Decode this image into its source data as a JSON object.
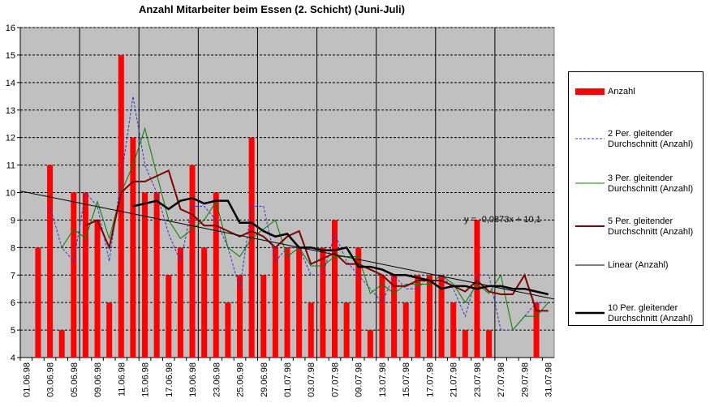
{
  "chart_data": {
    "type": "bar",
    "title": "Anzahl Mitarbeiter beim Essen (2. Schicht) (Juni-Juli)",
    "categories": [
      "01.06.98",
      null,
      "03.06.98",
      null,
      "05.06.98",
      null,
      "09.06.98",
      null,
      "11.06.98",
      null,
      "15.06.98",
      null,
      "17.06.98",
      null,
      "19.06.98",
      null,
      "23.06.98",
      null,
      "25.06.98",
      null,
      "29.06.98",
      null,
      "01.07.98",
      null,
      "03.07.98",
      null,
      "07.07.98",
      null,
      "09.07.98",
      null,
      "13.07.98",
      null,
      "15.07.98",
      null,
      "17.07.98",
      null,
      "21.07.98",
      null,
      "23.07.98",
      null,
      "27.07.98",
      null,
      "29.07.98",
      null,
      "31.07.98"
    ],
    "series": [
      {
        "name": "Anzahl",
        "color": "#ff0000",
        "style": "bar",
        "values": [
          null,
          8,
          11,
          5,
          10,
          10,
          9,
          6,
          15,
          12,
          10,
          10,
          7,
          8,
          11,
          8,
          10,
          6,
          7,
          12,
          7,
          8,
          8,
          8,
          6,
          8,
          9,
          6,
          8,
          5,
          7,
          7,
          6,
          7,
          7,
          7,
          6,
          5,
          9,
          5,
          null,
          null,
          null,
          6,
          null
        ]
      },
      {
        "name": "2 Per. gleitender Durchschnitt (Anzahl)",
        "color": "#3333cc",
        "style": "dashed",
        "values": [
          null,
          null,
          9.5,
          8,
          7.5,
          10,
          9.5,
          7.5,
          10.5,
          13.5,
          11,
          10,
          8.5,
          7.5,
          9.5,
          9.5,
          9,
          8,
          6.5,
          9.5,
          9.5,
          7.5,
          8,
          8,
          7,
          7,
          8.5,
          7.5,
          7,
          6.5,
          6,
          7,
          6.5,
          6.5,
          7,
          7,
          6.5,
          5.5,
          7,
          7,
          5,
          5,
          5.5,
          6,
          6
        ]
      },
      {
        "name": "3 Per. gleitender Durchschnitt (Anzahl)",
        "color": "#008000",
        "style": "thin",
        "values": [
          null,
          null,
          null,
          8,
          8.67,
          8.33,
          9.67,
          8.33,
          10,
          11,
          12.33,
          10.67,
          9,
          8.33,
          8.67,
          9,
          9.67,
          8,
          7.67,
          8.33,
          8.67,
          9,
          7.67,
          8,
          7.33,
          7.33,
          7.67,
          7.67,
          7.67,
          6.33,
          6.67,
          6.33,
          6.67,
          6.67,
          6.67,
          7,
          6.67,
          6,
          6.67,
          6.33,
          7,
          5,
          5.5,
          5.5,
          6
        ]
      },
      {
        "name": "5 Per. gleitender Durchschnitt (Anzahl)",
        "color": "#800000",
        "style": "medium",
        "values": [
          null,
          null,
          null,
          null,
          null,
          8.8,
          9,
          8,
          10,
          10.4,
          10.4,
          10.6,
          10.8,
          9.4,
          9.2,
          8.8,
          8.8,
          8.6,
          8.4,
          8.6,
          8.4,
          8,
          8.4,
          8.6,
          7.4,
          7.6,
          7.8,
          7.4,
          7.4,
          7.2,
          7,
          6.6,
          6.6,
          6.8,
          6.8,
          6.8,
          6.6,
          6.4,
          6.8,
          6.4,
          6.3,
          6.3,
          7,
          5.7,
          5.7
        ]
      },
      {
        "name": "10 Per. gleitender Durchschnitt (Anzahl)",
        "color": "#000000",
        "style": "thick",
        "values": [
          null,
          null,
          null,
          null,
          null,
          null,
          null,
          null,
          null,
          9.5,
          9.6,
          9.7,
          9.4,
          9.7,
          9.8,
          9.6,
          9.7,
          9.7,
          8.9,
          8.9,
          8.6,
          8.4,
          8.5,
          8,
          8,
          7.9,
          7.9,
          8,
          7.3,
          7.3,
          7.2,
          7,
          7,
          6.9,
          6.8,
          6.5,
          6.6,
          6.6,
          6.5,
          6.6,
          6.6,
          6.5,
          6.5,
          6.4,
          6.3
        ]
      }
    ],
    "trendline": {
      "name": "Linear (Anzahl)",
      "color": "#000000",
      "slope": -0.0873,
      "intercept": 10.1,
      "label": "y = -0,0873x + 10,1"
    },
    "ylim": [
      4,
      16
    ],
    "yticks": [
      4,
      5,
      6,
      7,
      8,
      9,
      10,
      11,
      12,
      13,
      14,
      15,
      16
    ],
    "grid": true,
    "plot_background": "#c0c0c0",
    "legend": "right"
  }
}
